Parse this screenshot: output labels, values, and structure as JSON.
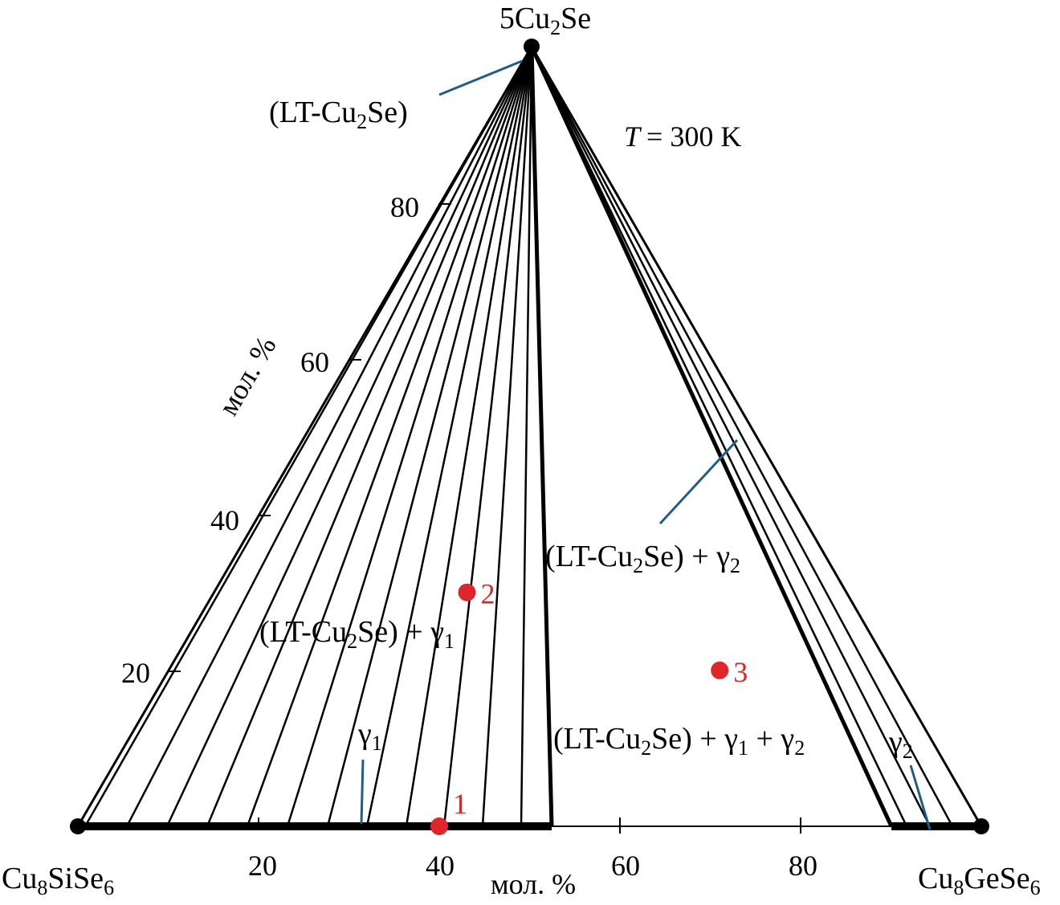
{
  "vertices": {
    "top_prefix": "5Cu",
    "top_sub": "2",
    "top_suffix": "Se",
    "left": [
      {
        "t": "Cu"
      },
      {
        "t": "8",
        "sub": true
      },
      {
        "t": "SiSe"
      },
      {
        "t": "6",
        "sub": true
      }
    ],
    "right": [
      {
        "t": "Cu"
      },
      {
        "t": "8",
        "sub": true
      },
      {
        "t": "GeSe"
      },
      {
        "t": "6",
        "sub": true
      }
    ]
  },
  "temperature_label": "T",
  "temperature_value": "= 300 K",
  "axis_unit_left": "мол. %",
  "axis_unit_bottom": "мол. %",
  "left_axis_ticks": [
    "20",
    "40",
    "60",
    "80"
  ],
  "bottom_axis_ticks": [
    "20",
    "40",
    "60",
    "80"
  ],
  "regions": {
    "lt_cu2se": [
      {
        "t": "(LT-Cu"
      },
      {
        "t": "2",
        "sub": true
      },
      {
        "t": "Se)"
      }
    ],
    "two_phase_gamma1": [
      {
        "t": "(LT-Cu"
      },
      {
        "t": "2",
        "sub": true
      },
      {
        "t": "Se) + γ"
      },
      {
        "t": "1",
        "sub": true
      }
    ],
    "two_phase_gamma2": [
      {
        "t": "(LT-Cu"
      },
      {
        "t": "2",
        "sub": true
      },
      {
        "t": "Se) + γ"
      },
      {
        "t": "2",
        "sub": true
      }
    ],
    "three_phase": [
      {
        "t": "(LT-Cu"
      },
      {
        "t": "2",
        "sub": true
      },
      {
        "t": "Se) + γ"
      },
      {
        "t": "1",
        "sub": true
      },
      {
        "t": " + γ"
      },
      {
        "t": "2",
        "sub": true
      }
    ],
    "gamma1": [
      {
        "t": "γ"
      },
      {
        "t": "1",
        "sub": true
      }
    ],
    "gamma2": [
      {
        "t": "γ"
      },
      {
        "t": "2",
        "sub": true
      }
    ]
  },
  "sample_points": [
    {
      "label": "1",
      "cu8gese6_mol_pct": 40,
      "cu2se_mol_pct": 0
    },
    {
      "label": "2",
      "cu8gese6_mol_pct": 28,
      "cu2se_mol_pct": 30
    },
    {
      "label": "3",
      "cu8gese6_mol_pct": 61,
      "cu2se_mol_pct": 20
    }
  ],
  "colors": {
    "lines": "#000000",
    "pointer_lines": "#1f5f87",
    "sample_points": "#e0262b"
  }
}
